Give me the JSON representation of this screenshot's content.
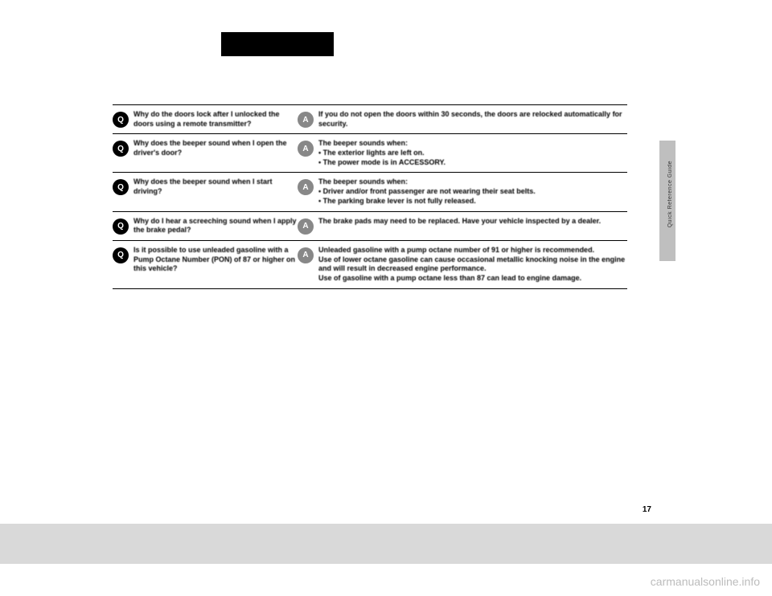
{
  "header": {
    "badge": " "
  },
  "sidebar": {
    "label": "Quick Reference Guide"
  },
  "pageNumber": "17",
  "watermark": "carmanualsonline.info",
  "faq": [
    {
      "q": "Why do the doors lock after I unlocked the doors using a remote transmitter?",
      "a": "If you do not open the doors within 30 seconds, the doors are relocked automatically for security."
    },
    {
      "q": "Why does the beeper sound when I open the driver's door?",
      "a_intro": "The beeper sounds when:",
      "a_list": [
        "The exterior lights are left on.",
        "The power mode is in ACCESSORY."
      ]
    },
    {
      "q": "Why does the beeper sound when I start driving?",
      "a_intro": "The beeper sounds when:",
      "a_list": [
        "Driver and/or front passenger are not wearing their seat belts.",
        "The parking brake lever is not fully released."
      ]
    },
    {
      "q": "Why do I hear a screeching sound when I apply the brake pedal?",
      "a": "The brake pads may need to be replaced. Have your vehicle inspected by a dealer."
    },
    {
      "q": "Is it possible to use unleaded gasoline with a Pump Octane Number (PON) of 87 or higher on this vehicle?",
      "a": "Unleaded gasoline with a pump octane number of 91 or higher is recommended.\nUse of lower octane gasoline can cause occasional metallic knocking noise in the engine and will result in decreased engine performance.\nUse of gasoline with a pump octane less than 87 can lead to engine damage."
    }
  ]
}
